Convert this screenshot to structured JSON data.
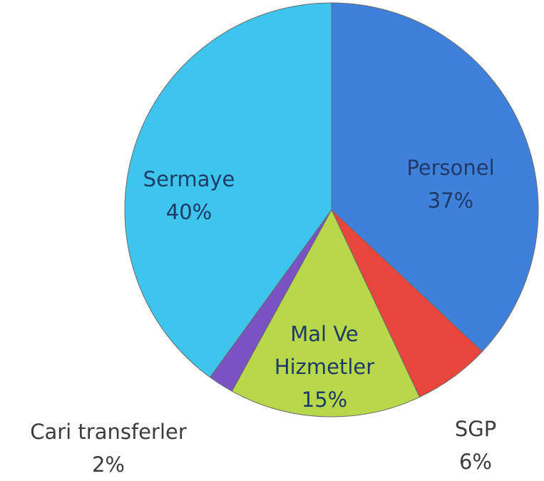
{
  "chart_data": {
    "type": "pie",
    "categories": [
      "Personel",
      "SGP",
      "Mal Ve Hizmetler",
      "Cari transferler",
      "Sermaye"
    ],
    "values": [
      37,
      6,
      15,
      2,
      40
    ],
    "value_labels": [
      "37%",
      "6%",
      "15%",
      "2%",
      "40%"
    ],
    "colors": [
      "#3f80da",
      "#e8463d",
      "#b7d84b",
      "#7a52c2",
      "#3ec5ee"
    ]
  }
}
